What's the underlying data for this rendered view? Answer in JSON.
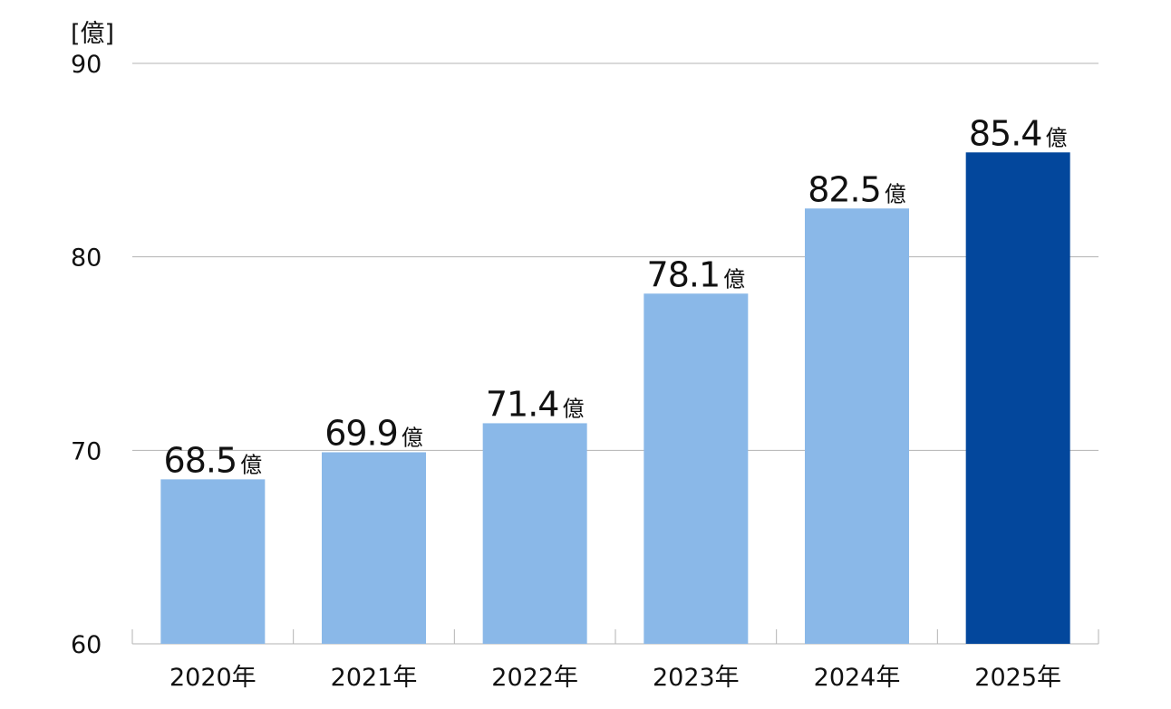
{
  "chart_data": {
    "type": "bar",
    "title": "",
    "xlabel": "",
    "ylabel": "[億]",
    "unit": "億",
    "categories": [
      "2020年",
      "2021年",
      "2022年",
      "2023年",
      "2024年",
      "2025年"
    ],
    "values": [
      68.5,
      69.9,
      71.4,
      78.1,
      82.5,
      85.4
    ],
    "value_labels": [
      "68.5",
      "69.9",
      "71.4",
      "78.1",
      "82.5",
      "85.4"
    ],
    "ylim": [
      60,
      90
    ],
    "yticks": [
      "60",
      "70",
      "80",
      "90"
    ],
    "ytick_values": [
      60,
      70,
      80,
      90
    ],
    "grid": true,
    "colors": {
      "bar": "#8ab8e8",
      "highlight": "#03479c",
      "grid": "#b3b3b3"
    },
    "highlight_index": 5
  }
}
